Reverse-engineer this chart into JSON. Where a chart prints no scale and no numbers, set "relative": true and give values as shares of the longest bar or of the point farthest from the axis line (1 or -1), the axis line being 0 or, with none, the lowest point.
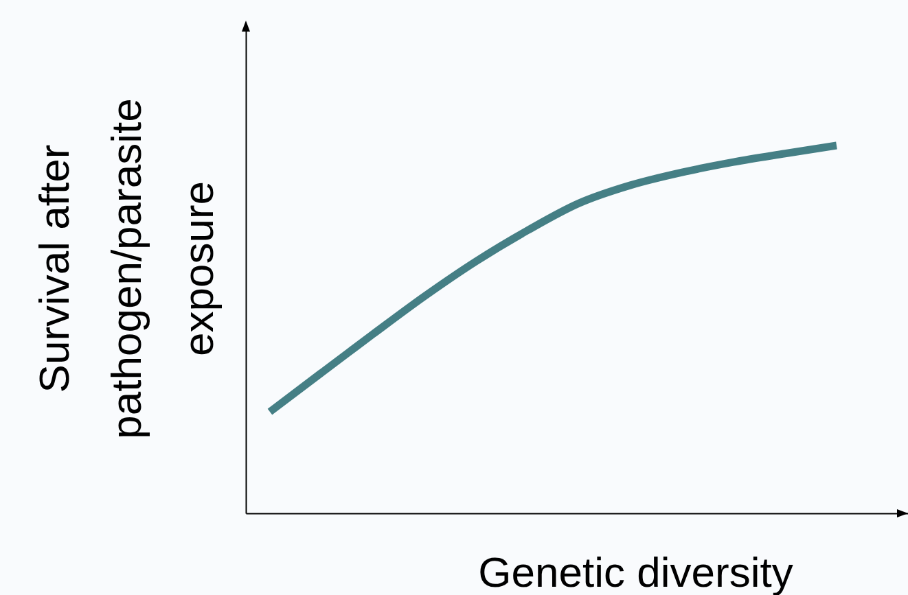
{
  "chart_data": {
    "type": "line",
    "relative": true,
    "xlabel": "Genetic diversity",
    "ylabel": "Survival after\npathogen/parasite\nexposure",
    "categories": [
      null,
      null,
      null,
      null,
      null,
      null,
      null,
      null,
      null,
      null,
      null,
      null
    ],
    "series": [
      {
        "color": "#457f85",
        "values": [
          0.276,
          0.382,
          0.487,
          0.59,
          0.685,
          0.769,
          0.843,
          0.892,
          0.927,
          0.955,
          0.978,
          1.0
        ]
      }
    ],
    "marker": "none",
    "line_style": "solid",
    "grid": false,
    "legend": false,
    "tick_labels": false
  }
}
